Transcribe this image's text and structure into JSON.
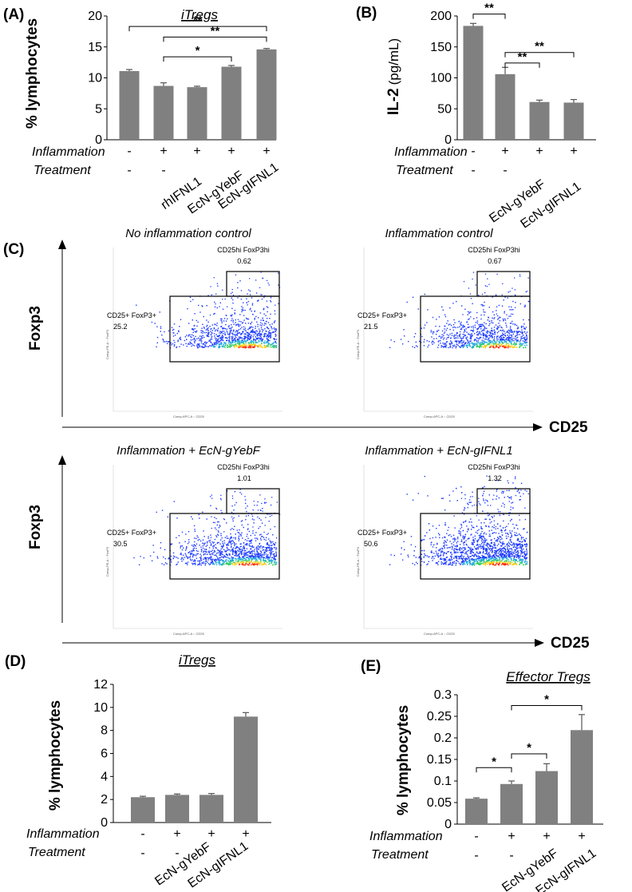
{
  "chart_data": [
    {
      "panel": "(A)",
      "type": "bar",
      "title": "iTregs",
      "ylabel": "% lymphocytes",
      "ylim": [
        0,
        20
      ],
      "yticks": [
        0,
        5,
        10,
        15,
        20
      ],
      "categories": [
        "1",
        "2",
        "3",
        "4",
        "5"
      ],
      "values": [
        11.1,
        8.7,
        8.5,
        11.8,
        14.6
      ],
      "errors": [
        0.25,
        0.5,
        0.15,
        0.2,
        0.15
      ],
      "inflammation": [
        "-",
        "+",
        "+",
        "+",
        "+"
      ],
      "treatment": [
        "-",
        "-",
        "rhIFNL1",
        "EcN-gYebF",
        "EcN-gIFNL1"
      ],
      "row_labels": [
        "Inflammation",
        "Treatment"
      ],
      "significance": [
        {
          "from": 0,
          "to": 4,
          "label": "**",
          "y": 18.3
        },
        {
          "from": 1,
          "to": 4,
          "label": "**",
          "y": 16.6
        },
        {
          "from": 1,
          "to": 3,
          "label": "*",
          "y": 13.4
        }
      ]
    },
    {
      "panel": "(B)",
      "type": "bar",
      "title": "",
      "ylabel": "IL-2",
      "ylabel_unit": "(pg/mL)",
      "ylim": [
        0,
        200
      ],
      "yticks": [
        0,
        50,
        100,
        150,
        200
      ],
      "categories": [
        "1",
        "2",
        "3",
        "4"
      ],
      "values": [
        184,
        106,
        61,
        60
      ],
      "errors": [
        4,
        11,
        3,
        5
      ],
      "inflammation": [
        "-",
        "+",
        "+",
        "+"
      ],
      "treatment": [
        "-",
        "-",
        "EcN-gYebF",
        "EcN-gIFNL1"
      ],
      "row_labels": [
        "Inflammation",
        "Treatment"
      ],
      "significance": [
        {
          "from": 0,
          "to": 1,
          "label": "**",
          "y": 203
        },
        {
          "from": 1,
          "to": 3,
          "label": "**",
          "y": 141
        },
        {
          "from": 1,
          "to": 2,
          "label": "**",
          "y": 124
        }
      ]
    },
    {
      "panel": "(D)",
      "type": "bar",
      "title": "iTregs",
      "ylabel": "% lymphocytes",
      "ylim": [
        0,
        12
      ],
      "yticks": [
        0,
        2,
        4,
        6,
        8,
        10,
        12
      ],
      "categories": [
        "1",
        "2",
        "3",
        "4"
      ],
      "values": [
        2.2,
        2.4,
        2.4,
        9.2
      ],
      "errors": [
        0.08,
        0.08,
        0.12,
        0.35
      ],
      "inflammation": [
        "-",
        "+",
        "+",
        "+"
      ],
      "treatment": [
        "-",
        "-",
        "EcN-gYebF",
        "EcN-gIFNL1"
      ],
      "row_labels": [
        "Inflammation",
        "Treatment"
      ],
      "significance": []
    },
    {
      "panel": "(E)",
      "type": "bar",
      "title": "Effector Tregs",
      "ylabel": "% lymphocytes",
      "ylim": [
        0,
        0.3
      ],
      "yticks": [
        0,
        0.05,
        0.1,
        0.15,
        0.2,
        0.25,
        0.3
      ],
      "categories": [
        "1",
        "2",
        "3",
        "4"
      ],
      "values": [
        0.059,
        0.093,
        0.123,
        0.218
      ],
      "errors": [
        0.002,
        0.007,
        0.017,
        0.036
      ],
      "inflammation": [
        "-",
        "+",
        "+",
        "+"
      ],
      "treatment": [
        "-",
        "-",
        "EcN-gYebF",
        "EcN-gIFNL1"
      ],
      "row_labels": [
        "Inflammation",
        "Treatment"
      ],
      "significance": [
        {
          "from": 1,
          "to": 3,
          "label": "*",
          "y": 0.275
        },
        {
          "from": 1,
          "to": 2,
          "label": "*",
          "y": 0.163
        },
        {
          "from": 0,
          "to": 1,
          "label": "*",
          "y": 0.131
        }
      ]
    },
    {
      "panel": "(C)",
      "type": "scatter",
      "x_axis_label": "CD25",
      "y_axis_label": "Foxp3",
      "plots": [
        {
          "title": "No inflammation control",
          "gate_hi_label": "CD25hi FoxP3hi",
          "gate_hi_value": "0.62",
          "gate_pos_label": "CD25+ FoxP3+",
          "gate_pos_value": "25.2",
          "density": 0.9
        },
        {
          "title": "Inflammation control",
          "gate_hi_label": "CD25hi FoxP3hi",
          "gate_hi_value": "0.67",
          "gate_pos_label": "CD25+ FoxP3+",
          "gate_pos_value": "21.5",
          "density": 0.8
        },
        {
          "title": "Inflammation + EcN-gYebF",
          "gate_hi_label": "CD25hi FoxP3hi",
          "gate_hi_value": "1.01",
          "gate_pos_label": "CD25+ FoxP3+",
          "gate_pos_value": "30.5",
          "density": 1.0
        },
        {
          "title": "Inflammation + EcN-gIFNL1",
          "gate_hi_label": "CD25hi FoxP3hi",
          "gate_hi_value": "1.32",
          "gate_pos_label": "CD25+ FoxP3+",
          "gate_pos_value": "50.6",
          "density": 1.5
        }
      ],
      "axis_tick_text": {
        "y": "Comp-PE-A :: FoxP3",
        "x": "Comp-APC-A :: CD25"
      }
    }
  ],
  "colors": {
    "bar": "#808080",
    "axis": "#000000",
    "gate": "#000000"
  }
}
